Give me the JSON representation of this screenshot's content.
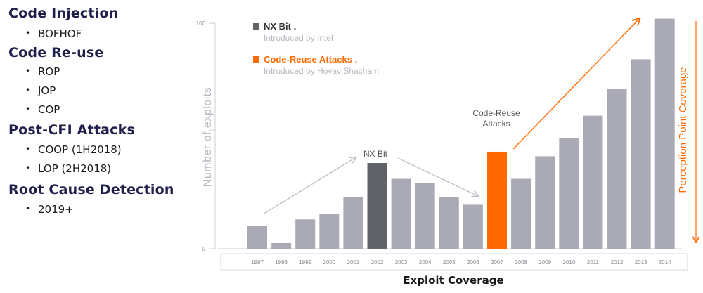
{
  "outline": {
    "sections": [
      {
        "heading": "Code Injection",
        "items": [
          "BOFHOF"
        ]
      },
      {
        "heading": "Code Re-use",
        "items": [
          "ROP",
          "JOP",
          "COP"
        ]
      },
      {
        "heading": "Post-CFI Attacks",
        "items": [
          "COOP (1H2018)",
          "LOP  (2H2018)"
        ]
      },
      {
        "heading": "Root Cause Detection",
        "items": [
          "2019+"
        ]
      }
    ],
    "bullet": "•"
  },
  "chart_data": {
    "type": "bar",
    "title": "",
    "xlabel": "Exploit Coverage",
    "ylabel": "Number of exploits",
    "right_label": "Perception Point Coverage",
    "ylim": [
      0,
      100
    ],
    "yticks": [
      "0",
      "100"
    ],
    "categories": [
      "1997",
      "1998",
      "1999",
      "2000",
      "2001",
      "2002",
      "2003",
      "2004",
      "2005",
      "2006",
      "2007",
      "2008",
      "2009",
      "2010",
      "2011",
      "2012",
      "2013",
      "2014"
    ],
    "values": [
      10,
      2.5,
      13,
      15.5,
      23,
      38,
      31,
      29,
      23,
      19.5,
      43,
      31,
      41,
      49,
      59,
      71,
      84,
      102
    ],
    "highlights": {
      "2002": "#5f6368",
      "2007": "#ff6a00"
    },
    "bar_color": "#aaaab7",
    "legend": [
      {
        "label": "NX Bit .",
        "sublabel": "Introduced by Intel",
        "color": "#5f6368"
      },
      {
        "label": "Code-Reuse Attacks .",
        "sublabel": "Introduced by Hovav Shacham",
        "color": "#ff6a00"
      }
    ],
    "annotations": [
      {
        "text": "NX Bit",
        "color": "#555555"
      },
      {
        "text": "Code-Reuse",
        "color": "#555555"
      },
      {
        "text": "Attacks",
        "color": "#555555"
      }
    ],
    "colors": {
      "accent": "#ff6a00",
      "axis": "#cfcfd6",
      "muted": "#b8b8c2"
    }
  }
}
